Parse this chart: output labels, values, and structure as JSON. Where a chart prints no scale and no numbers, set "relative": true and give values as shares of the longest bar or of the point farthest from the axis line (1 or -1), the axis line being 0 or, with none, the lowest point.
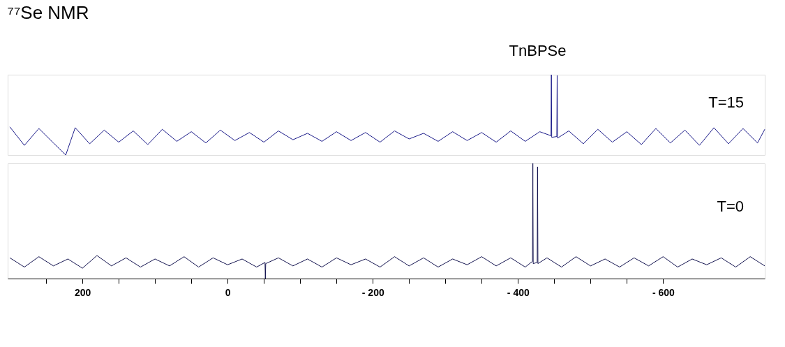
{
  "chart_data": [
    {
      "type": "line",
      "title": "⁷⁷Se NMR",
      "annotations": [
        "TnBPSe"
      ],
      "relative": true,
      "xlim": [
        303,
        -740
      ],
      "tick_labels": false,
      "marker": "none",
      "series": [
        {
          "name": "T=15",
          "color": "#1c1c8a",
          "x": [
            300,
            280,
            260,
            240,
            223,
            210,
            190,
            170,
            150,
            130,
            110,
            90,
            70,
            50,
            30,
            10,
            -10,
            -30,
            -50,
            -70,
            -90,
            -110,
            -130,
            -150,
            -170,
            -190,
            -210,
            -230,
            -250,
            -270,
            -290,
            -310,
            -330,
            -350,
            -370,
            -390,
            -410,
            -430,
            -445.5,
            -446,
            -446.5,
            -453.5,
            -454,
            -454.5,
            -470,
            -490,
            -510,
            -530,
            -550,
            -570,
            -590,
            -610,
            -630,
            -650,
            -670,
            -690,
            -710,
            -730,
            -740
          ],
          "values": [
            0.35,
            0.12,
            0.33,
            0.15,
            0.0,
            0.34,
            0.14,
            0.31,
            0.16,
            0.3,
            0.13,
            0.32,
            0.17,
            0.29,
            0.15,
            0.31,
            0.18,
            0.28,
            0.16,
            0.3,
            0.19,
            0.27,
            0.17,
            0.29,
            0.18,
            0.28,
            0.16,
            0.3,
            0.2,
            0.27,
            0.17,
            0.29,
            0.18,
            0.28,
            0.16,
            0.3,
            0.17,
            0.29,
            0.24,
            1,
            0.22,
            0.23,
            0.99,
            0.21,
            0.3,
            0.14,
            0.32,
            0.16,
            0.29,
            0.13,
            0.33,
            0.15,
            0.31,
            0.12,
            0.34,
            0.14,
            0.33,
            0.15,
            0.32
          ]
        }
      ]
    },
    {
      "type": "line",
      "relative": true,
      "xlim": [
        303,
        -740
      ],
      "tick_labels": "x",
      "marker": "none",
      "xticks": [
        {
          "value": 250,
          "label": null
        },
        {
          "value": 200,
          "label": "200"
        },
        {
          "value": 150,
          "label": null
        },
        {
          "value": 100,
          "label": null
        },
        {
          "value": 50,
          "label": null
        },
        {
          "value": 0,
          "label": "0"
        },
        {
          "value": -50,
          "label": null
        },
        {
          "value": -100,
          "label": null
        },
        {
          "value": -150,
          "label": null
        },
        {
          "value": -200,
          "label": "- 200"
        },
        {
          "value": -250,
          "label": null
        },
        {
          "value": -300,
          "label": null
        },
        {
          "value": -350,
          "label": null
        },
        {
          "value": -400,
          "label": "- 400"
        },
        {
          "value": -450,
          "label": null
        },
        {
          "value": -500,
          "label": null
        },
        {
          "value": -550,
          "label": null
        },
        {
          "value": -600,
          "label": "- 600"
        }
      ],
      "series": [
        {
          "name": "T=0",
          "color": "#141450",
          "x": [
            300,
            280,
            260,
            240,
            220,
            200,
            180,
            160,
            140,
            120,
            100,
            80,
            60,
            40,
            20,
            0,
            -20,
            -40,
            -51.5,
            -52,
            -52.5,
            -70,
            -90,
            -110,
            -130,
            -150,
            -170,
            -190,
            -210,
            -230,
            -250,
            -270,
            -290,
            -310,
            -330,
            -350,
            -370,
            -390,
            -410,
            -420,
            -420.5,
            -421,
            -426.5,
            -427,
            -427.5,
            -440,
            -460,
            -480,
            -500,
            -520,
            -540,
            -560,
            -580,
            -600,
            -620,
            -640,
            -660,
            -680,
            -700,
            -720,
            -740
          ],
          "values": [
            0.18,
            0.1,
            0.19,
            0.11,
            0.17,
            0.09,
            0.2,
            0.11,
            0.18,
            0.1,
            0.17,
            0.11,
            0.19,
            0.1,
            0.18,
            0.12,
            0.17,
            0.1,
            0.14,
            0,
            0.13,
            0.18,
            0.11,
            0.17,
            0.1,
            0.18,
            0.12,
            0.17,
            0.1,
            0.19,
            0.11,
            0.18,
            0.1,
            0.17,
            0.12,
            0.19,
            0.11,
            0.18,
            0.1,
            0.15,
            1,
            0.13,
            0.14,
            0.97,
            0.13,
            0.18,
            0.1,
            0.19,
            0.11,
            0.17,
            0.1,
            0.18,
            0.11,
            0.19,
            0.1,
            0.17,
            0.12,
            0.18,
            0.1,
            0.19,
            0.11
          ]
        }
      ]
    }
  ]
}
